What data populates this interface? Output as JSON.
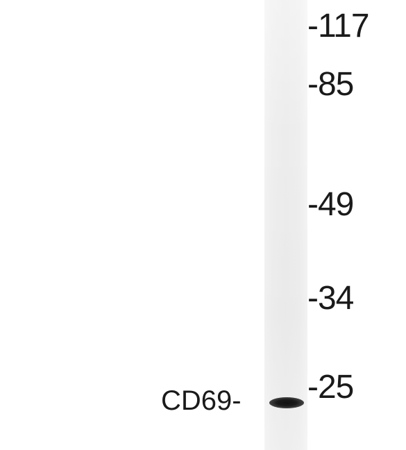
{
  "markers": [
    {
      "id": "m117",
      "label": "-117"
    },
    {
      "id": "m85",
      "label": "-85"
    },
    {
      "id": "m49",
      "label": "-49"
    },
    {
      "id": "m34",
      "label": "-34"
    },
    {
      "id": "m25",
      "label": "-25"
    }
  ],
  "protein_label": "CD69-",
  "colors": {
    "background": "#ffffff",
    "lane": "#ececec",
    "band": "#111111",
    "text": "#1a1a1a"
  }
}
